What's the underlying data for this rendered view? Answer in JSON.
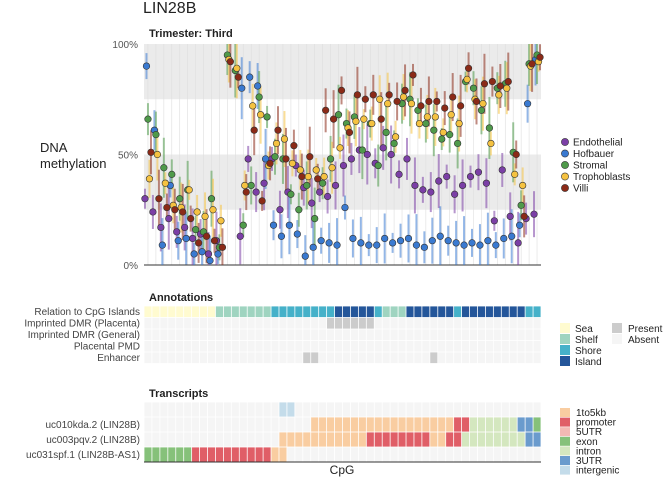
{
  "title": "LIN28B",
  "chart_data": {
    "type": "scatter",
    "panel_title": "Trimester: Third",
    "ylabel": "DNA\nmethylation",
    "xlabel": "CpG",
    "ylim": [
      0,
      1
    ],
    "yticks": [
      {
        "v": 0,
        "label": "0%"
      },
      {
        "v": 0.5,
        "label": "50%"
      },
      {
        "v": 1,
        "label": "100%"
      }
    ],
    "bands": [
      [
        0.25,
        0.5
      ],
      [
        0.75,
        1.0
      ]
    ],
    "n_cpgs": 50,
    "series": [
      {
        "name": "Endothelial",
        "color": "#7b3fa6",
        "values": [
          0.3,
          0.24,
          0.17,
          0.21,
          0.15,
          0.17,
          0.12,
          0.14,
          0.05,
          0.11,
          null,
          null,
          0.13,
          0.48,
          0.33,
          0.37,
          0.48,
          0.25,
          0.33,
          0.45,
          0.35,
          0.28,
          0.33,
          0.31,
          0.36,
          0.45,
          0.48,
          0.52,
          0.5,
          0.46,
          0.53,
          0.5,
          0.41,
          0.48,
          0.36,
          0.34,
          0.33,
          0.38,
          0.4,
          0.32,
          0.36,
          0.4,
          0.42,
          0.37,
          0.2,
          0.43,
          0.22,
          0.1,
          0.21,
          0.23
        ]
      },
      {
        "name": "Hofbauer",
        "color": "#3a7ad1",
        "values": [
          0.9,
          0.61,
          0.09,
          0.36,
          0.11,
          0.12,
          0.05,
          0.06,
          0.02,
          0.05,
          null,
          null,
          0.8,
          0.85,
          0.81,
          0.48,
          0.18,
          0.13,
          0.18,
          0.14,
          0.04,
          0.08,
          0.11,
          0.1,
          0.09,
          0.26,
          0.12,
          0.1,
          0.09,
          0.09,
          0.12,
          0.1,
          0.11,
          0.12,
          0.09,
          0.08,
          0.11,
          0.13,
          0.11,
          0.1,
          0.09,
          0.1,
          0.09,
          0.11,
          0.09,
          0.12,
          0.13,
          0.18,
          0.73,
          0.93
        ]
      },
      {
        "name": "Stromal",
        "color": "#4f9a4a",
        "values": [
          0.66,
          0.59,
          0.44,
          0.41,
          0.3,
          0.34,
          0.16,
          0.15,
          0.3,
          0.08,
          0.95,
          0.88,
          0.18,
          0.36,
          0.76,
          0.67,
          0.49,
          0.48,
          0.32,
          0.25,
          0.36,
          0.21,
          0.37,
          0.48,
          0.68,
          0.64,
          0.67,
          0.52,
          0.64,
          0.45,
          0.6,
          0.55,
          0.73,
          0.75,
          0.7,
          0.64,
          0.61,
          0.57,
          0.59,
          0.55,
          0.83,
          0.8,
          0.7,
          0.62,
          0.8,
          0.82,
          0.51,
          0.27,
          0.91,
          0.95
        ]
      },
      {
        "name": "Trophoblasts",
        "color": "#f5c241",
        "values": [
          0.39,
          0.5,
          0.37,
          0.27,
          0.26,
          0.34,
          0.24,
          0.22,
          0.25,
          0.2,
          0.93,
          0.89,
          0.36,
          0.72,
          0.68,
          0.45,
          0.55,
          0.57,
          0.46,
          0.43,
          0.4,
          0.43,
          0.4,
          0.44,
          0.53,
          0.62,
          0.65,
          0.66,
          0.64,
          0.75,
          0.73,
          0.58,
          0.76,
          0.73,
          0.64,
          0.67,
          0.67,
          0.6,
          0.68,
          0.64,
          0.84,
          0.75,
          0.73,
          0.55,
          0.77,
          0.8,
          0.41,
          0.36,
          0.9,
          0.92
        ]
      },
      {
        "name": "Villi",
        "color": "#8b2a17",
        "values": [
          0.51,
          0.3,
          0.26,
          0.25,
          0.24,
          0.21,
          0.1,
          0.13,
          0.11,
          0.08,
          0.92,
          0.85,
          0.33,
          0.61,
          0.29,
          0.46,
          0.61,
          0.48,
          0.54,
          0.4,
          0.49,
          0.39,
          0.7,
          0.66,
          0.79,
          0.6,
          0.77,
          0.75,
          0.77,
          0.66,
          0.77,
          0.74,
          0.79,
          0.86,
          0.72,
          0.74,
          0.74,
          0.71,
          0.76,
          0.72,
          0.89,
          0.74,
          0.82,
          0.83,
          0.81,
          0.83,
          0.5,
          0.22,
          0.91,
          0.94
        ]
      }
    ],
    "annotations": {
      "title": "Annotations",
      "rows": [
        "Relation to CpG Islands",
        "Imprinted DMR (Placenta)",
        "Imprinted DMR (General)",
        "Placental PMD",
        "Enhancer"
      ],
      "cpg_island_relation": [
        "Sea",
        "Sea",
        "Sea",
        "Sea",
        "Sea",
        "Sea",
        "Sea",
        "Sea",
        "Sea",
        "Shelf",
        "Shelf",
        "Shelf",
        "Shelf",
        "Shelf",
        "Shelf",
        "Shelf",
        "Shore",
        "Shore",
        "Shore",
        "Shore",
        "Shore",
        "Shore",
        "Shore",
        "Shore",
        "Island",
        "Island",
        "Island",
        "Island",
        "Island",
        "Shore",
        "Shelf",
        "Shelf",
        "Shelf",
        "Island",
        "Island",
        "Island",
        "Island",
        "Island",
        "Island",
        "Shore",
        "Island",
        "Island",
        "Island",
        "Island",
        "Island",
        "Island",
        "Island",
        "Island",
        "Shore",
        "Shore"
      ],
      "present": {
        "Imprinted DMR (Placenta)": [
          23,
          24,
          25,
          26,
          27,
          28
        ],
        "Imprinted DMR (General)": [],
        "Placental PMD": [],
        "Enhancer": [
          20,
          21,
          36
        ]
      },
      "legend_relation": [
        {
          "label": "Sea",
          "color": "#fffbd0"
        },
        {
          "label": "Shelf",
          "color": "#9fd4c0"
        },
        {
          "label": "Shore",
          "color": "#45b1c9"
        },
        {
          "label": "Island",
          "color": "#24569a"
        }
      ],
      "legend_presence": [
        {
          "label": "Present",
          "color": "#cccccc"
        },
        {
          "label": "Absent",
          "color": "#f5f5f5"
        }
      ]
    },
    "transcripts": {
      "title": "Transcripts",
      "rows": [
        "uc010kda.2 (LIN28B)",
        "uc003pqv.2 (LIN28B)",
        "uc031spf.1 (LIN28B-AS1)"
      ],
      "legend": [
        {
          "label": "1to5kb",
          "color": "#f9cda1"
        },
        {
          "label": "promoter",
          "color": "#e05e67"
        },
        {
          "label": "5UTR",
          "color": "#f4b9b4"
        },
        {
          "label": "exon",
          "color": "#86c17a"
        },
        {
          "label": "intron",
          "color": "#d4e7bf"
        },
        {
          "label": "3UTR",
          "color": "#6a9bcd"
        },
        {
          "label": "intergenic",
          "color": "#c4dcea"
        }
      ],
      "top_row": {
        "intergenic": [
          17,
          18
        ]
      },
      "uc010kda": [
        "",
        "",
        "",
        "",
        "",
        "",
        "",
        "",
        "",
        "",
        "",
        "",
        "",
        "",
        "",
        "",
        "",
        "",
        "",
        "",
        "",
        "1to5kb",
        "1to5kb",
        "1to5kb",
        "1to5kb",
        "1to5kb",
        "1to5kb",
        "1to5kb",
        "1to5kb",
        "1to5kb",
        "1to5kb",
        "1to5kb",
        "1to5kb",
        "1to5kb",
        "1to5kb",
        "1to5kb",
        "1to5kb",
        "1to5kb",
        "1to5kb",
        "promoter",
        "promoter",
        "intron",
        "intron",
        "intron",
        "intron",
        "intron",
        "intron",
        "3UTR",
        "3UTR",
        "exon"
      ],
      "uc003pqv": [
        "",
        "",
        "",
        "",
        "",
        "",
        "",
        "",
        "",
        "",
        "",
        "",
        "",
        "",
        "",
        "",
        "",
        "1to5kb",
        "1to5kb",
        "1to5kb",
        "1to5kb",
        "1to5kb",
        "1to5kb",
        "1to5kb",
        "1to5kb",
        "1to5kb",
        "1to5kb",
        "1to5kb",
        "promoter",
        "promoter",
        "promoter",
        "promoter",
        "promoter",
        "promoter",
        "promoter",
        "promoter",
        "1to5kb",
        "1to5kb",
        "promoter",
        "promoter",
        "intron",
        "intron",
        "intron",
        "intron",
        "intron",
        "intron",
        "intron",
        "intron",
        "3UTR",
        "3UTR"
      ],
      "uc031spf": [
        "exon",
        "exon",
        "exon",
        "exon",
        "exon",
        "exon",
        "promoter",
        "promoter",
        "promoter",
        "promoter",
        "promoter",
        "promoter",
        "promoter",
        "promoter",
        "promoter",
        "promoter",
        "1to5kb",
        "1to5kb",
        "",
        "",
        "",
        "",
        "",
        "",
        "",
        "",
        "",
        "",
        "",
        "",
        "",
        "",
        "",
        "",
        "",
        "",
        "",
        "",
        "",
        "",
        "",
        "",
        "",
        "",
        "",
        "",
        "",
        "",
        "",
        ""
      ]
    }
  }
}
